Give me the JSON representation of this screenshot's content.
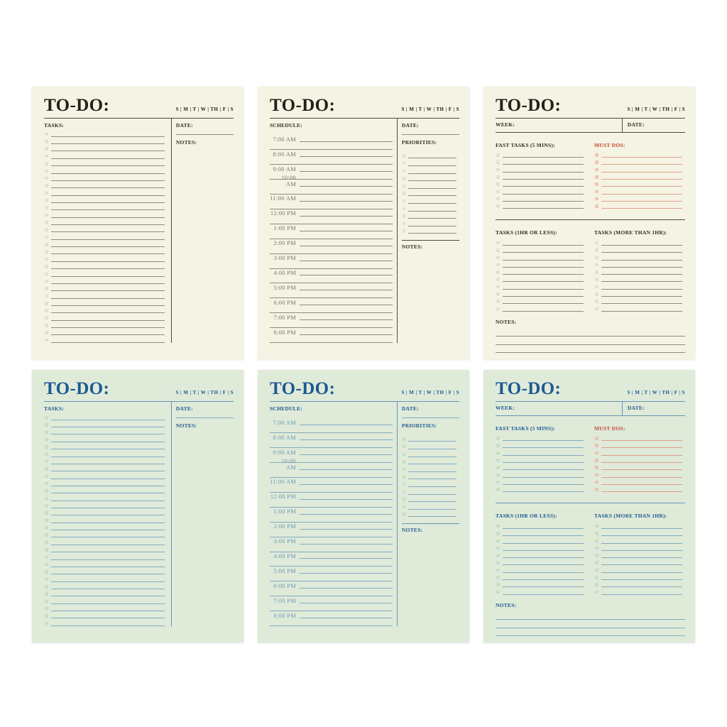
{
  "shared": {
    "title": "TO-DO:",
    "days": "S | M | T | W | TH | F | S"
  },
  "labels": {
    "tasks": "TASKS:",
    "date": "DATE:",
    "notes": "NOTES:",
    "schedule": "SCHEDULE:",
    "priorities": "PRIORITIES:",
    "week": "WEEK:",
    "fast_tasks": "FAST TASKS (5 MINS):",
    "must_dos": "MUST DOS:",
    "tasks_1hr": "TASKS (1HR OR LESS):",
    "tasks_more": "TASKS (MORE THAN 1HR):"
  },
  "schedule_times": [
    "7:00 AM",
    "8:00 AM",
    "9:00 AM",
    "10:00 AM",
    "11:00 AM",
    "12:00 PM",
    "1:00 PM",
    "2:00 PM",
    "3:00 PM",
    "4:00 PM",
    "5:00 PM",
    "6:00 PM",
    "7:00 PM",
    "8:00 PM"
  ],
  "counts": {
    "task_rows": 29,
    "priority_rows": 11,
    "fast_rows": 8,
    "hour_rows": 10,
    "notes_lines": 3
  },
  "cards": [
    {
      "type": "tasks",
      "theme": "cream"
    },
    {
      "type": "schedule",
      "theme": "cream"
    },
    {
      "type": "week",
      "theme": "cream"
    },
    {
      "type": "tasks",
      "theme": "green"
    },
    {
      "type": "schedule",
      "theme": "green"
    },
    {
      "type": "week",
      "theme": "green"
    }
  ],
  "colors": {
    "page_background": "#ffffff",
    "cream_background": "#f5f3e3",
    "cream_ink": "#23221a",
    "cream_line": "#8d8c7e",
    "cream_checkbox": "#e4e1cd",
    "green_background": "#dfead9",
    "green_ink": "#1d5a92",
    "green_line": "#83abc0",
    "green_checkbox": "#cbdcc7",
    "red_label": "#c8402c",
    "red_line": "#dfa28f",
    "red_checkbox": "#f1c5b4"
  }
}
